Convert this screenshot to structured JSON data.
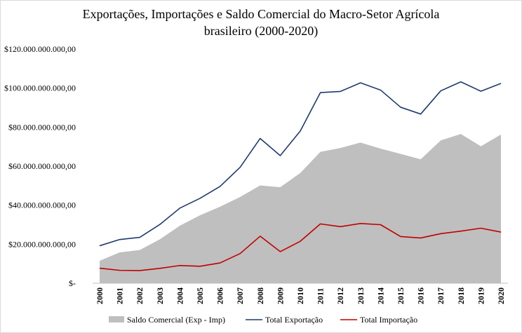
{
  "chart_data": {
    "type": "line",
    "title_line1": "Exportações, Importações e Saldo Comercial do Macro-Setor Agrícola",
    "title_line2": "brasileiro (2000-2020)",
    "xlabel": "",
    "ylabel": "",
    "ylim": [
      0,
      120000000000
    ],
    "y_ticks": [
      0,
      20000000000,
      40000000000,
      60000000000,
      80000000000,
      100000000000,
      120000000000
    ],
    "y_tick_labels": [
      "$-",
      "$20.000.000.000,00",
      "$40.000.000.000,00",
      "$60.000.000.000,00",
      "$80.000.000.000,00",
      "$100.000.000.000,00",
      "$120.000.000.000,00"
    ],
    "categories": [
      "2000",
      "2001",
      "2002",
      "2003",
      "2004",
      "2005",
      "2006",
      "2007",
      "2008",
      "2009",
      "2010",
      "2011",
      "2012",
      "2013",
      "2014",
      "2015",
      "2016",
      "2017",
      "2018",
      "2019",
      "2020"
    ],
    "series": [
      {
        "name": "Saldo Comercial (Exp - Imp)",
        "kind": "area",
        "color": "#bfbfbf",
        "values": [
          11500000000,
          15800000000,
          17000000000,
          22500000000,
          29500000000,
          34800000000,
          39200000000,
          44200000000,
          50100000000,
          49200000000,
          56500000000,
          67300000000,
          69300000000,
          72100000000,
          69000000000,
          66300000000,
          63500000000,
          73200000000,
          76500000000,
          70200000000,
          76200000000
        ]
      },
      {
        "name": "Total Exportação",
        "kind": "line",
        "color": "#1f3a6e",
        "values": [
          19200000000,
          22400000000,
          23500000000,
          30100000000,
          38500000000,
          43500000000,
          49600000000,
          59400000000,
          74200000000,
          65400000000,
          78000000000,
          97700000000,
          98300000000,
          102700000000,
          99000000000,
          90200000000,
          86700000000,
          98600000000,
          103200000000,
          98400000000,
          102400000000
        ]
      },
      {
        "name": "Total Importação",
        "kind": "line",
        "color": "#c00000",
        "values": [
          7700000000,
          6600000000,
          6500000000,
          7600000000,
          9100000000,
          8700000000,
          10400000000,
          15200000000,
          24100000000,
          16200000000,
          21500000000,
          30400000000,
          29000000000,
          30600000000,
          30000000000,
          23900000000,
          23200000000,
          25400000000,
          26700000000,
          28200000000,
          26200000000
        ]
      }
    ],
    "grid": false,
    "legend_position": "bottom"
  }
}
